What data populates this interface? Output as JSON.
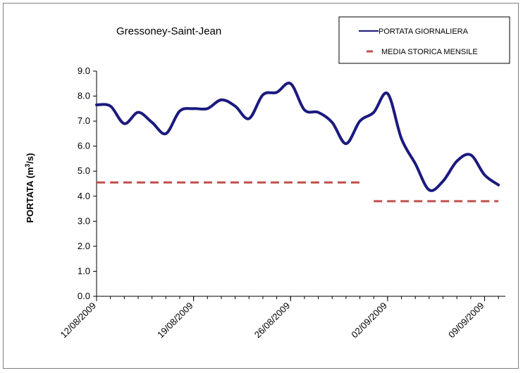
{
  "chart_data": {
    "type": "line",
    "title": "Gressoney-Saint-Jean",
    "xlabel": "",
    "ylabel_main": "PORTATA (m",
    "ylabel_sup": "3",
    "ylabel_end": "/s)",
    "ylim": [
      0,
      9
    ],
    "yticks": [
      "0.0",
      "1.0",
      "2.0",
      "3.0",
      "4.0",
      "5.0",
      "6.0",
      "7.0",
      "8.0",
      "9.0"
    ],
    "xlim": [
      "2009-08-12",
      "2009-09-10"
    ],
    "xticks": [
      {
        "date": "2009-08-12",
        "label": "12/08/2009"
      },
      {
        "date": "2009-08-19",
        "label": "19/08/2009"
      },
      {
        "date": "2009-08-26",
        "label": "26/08/2009"
      },
      {
        "date": "2009-09-02",
        "label": "02/09/2009"
      },
      {
        "date": "2009-09-09",
        "label": "09/09/2009"
      }
    ],
    "grid": false,
    "legend_position": "top-right",
    "series": [
      {
        "name": "PORTATA GIORNALIERA",
        "style": "solid",
        "color": "#1a1a7e",
        "x": [
          "2009-08-12",
          "2009-08-13",
          "2009-08-14",
          "2009-08-15",
          "2009-08-16",
          "2009-08-17",
          "2009-08-18",
          "2009-08-19",
          "2009-08-20",
          "2009-08-21",
          "2009-08-22",
          "2009-08-23",
          "2009-08-24",
          "2009-08-25",
          "2009-08-26",
          "2009-08-27",
          "2009-08-28",
          "2009-08-29",
          "2009-08-30",
          "2009-08-31",
          "2009-09-01",
          "2009-09-02",
          "2009-09-03",
          "2009-09-04",
          "2009-09-05",
          "2009-09-06",
          "2009-09-07",
          "2009-09-08",
          "2009-09-09",
          "2009-09-10"
        ],
        "values": [
          7.65,
          7.6,
          6.9,
          7.35,
          6.95,
          6.5,
          7.4,
          7.5,
          7.5,
          7.85,
          7.6,
          7.1,
          8.05,
          8.15,
          8.5,
          7.45,
          7.35,
          6.95,
          6.1,
          7.0,
          7.35,
          8.1,
          6.3,
          5.3,
          4.25,
          4.6,
          5.4,
          5.65,
          4.85,
          4.45
        ]
      },
      {
        "name": "MEDIA STORICA MENSILE",
        "style": "dashed",
        "color": "#c0504d",
        "segments": [
          {
            "x": [
              "2009-08-12",
              "2009-08-31"
            ],
            "value": 4.55
          },
          {
            "x": [
              "2009-09-01",
              "2009-09-10"
            ],
            "value": 3.8
          }
        ]
      }
    ]
  }
}
